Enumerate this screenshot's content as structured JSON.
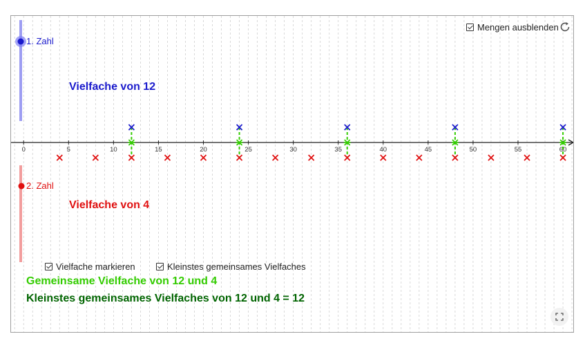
{
  "checkboxes": {
    "hide_sets": {
      "label": "Mengen ausblenden",
      "checked": true
    },
    "mark_multiples": {
      "label": "Vielfache markieren",
      "checked": true
    },
    "lcm": {
      "label": "Kleinstes gemeinsames Vielfaches",
      "checked": true
    }
  },
  "sliders": {
    "first": {
      "label": "1. Zahl",
      "value": 12,
      "color": "#1a1acc"
    },
    "second": {
      "label": "2. Zahl",
      "value": 4,
      "color": "#e01010"
    }
  },
  "texts": {
    "multiples_first": "Vielfache von 12",
    "multiples_second": "Vielfache von 4",
    "common_multiples": "Gemeinsame Vielfache von 12 und 4",
    "lcm_result": "Kleinstes gemeinsames Vielfaches von 12 und 4 = 12"
  },
  "colors": {
    "first": "#1a1acc",
    "second": "#e01010",
    "common": "#33cc00",
    "lcm_text": "#006400"
  },
  "number_line": {
    "ticks": [
      0,
      5,
      10,
      15,
      20,
      25,
      30,
      35,
      40,
      45,
      50,
      55,
      60
    ],
    "min": -1.4,
    "max": 61.3,
    "multiples_first": [
      12,
      24,
      36,
      48,
      60
    ],
    "multiples_second": [
      4,
      8,
      12,
      16,
      20,
      24,
      28,
      32,
      36,
      40,
      44,
      48,
      52,
      56,
      60
    ],
    "common": [
      12,
      24,
      36,
      48,
      60
    ]
  },
  "icons": {
    "reset": "reset-icon",
    "fullscreen": "fullscreen-icon"
  }
}
